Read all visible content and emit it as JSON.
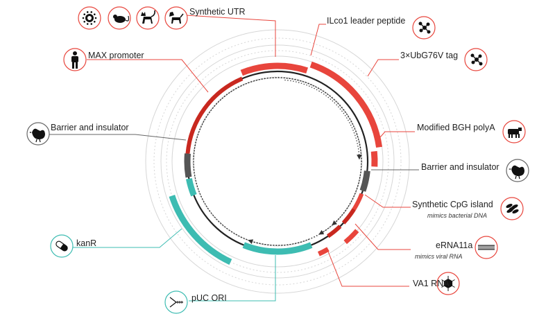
{
  "labels": {
    "synthetic_utr": "Synthetic UTR",
    "ilco1_leader": "ILco1 leader peptide",
    "ubg76v_tag": "3×UbG76V tag",
    "max_promoter": "MAX promoter",
    "modified_bgh_polya": "Modified BGH polyA",
    "barrier_left": "Barrier and insulator",
    "barrier_right": "Barrier and insulator",
    "synthetic_cpg": "Synthetic CpG island",
    "cpg_sub": "mimics bacterial DNA",
    "erna": "eRNA11a",
    "erna_sub": "mimics viral RNA",
    "kanr": "kanR",
    "va1": "VA1 RNA",
    "puc_ori": "pUC ORI"
  },
  "icons": {
    "top_group": [
      "virus-icon",
      "mouse-icon",
      "cat-icon",
      "dog-icon"
    ],
    "max_promoter": "human-icon",
    "barrier_left": "chicken-icon",
    "ilco1_leader": "molecule-icon",
    "ubg76v_tag": "molecule-icon",
    "modified_bgh_polya": "cow-icon",
    "barrier_right": "chicken-icon",
    "synthetic_cpg": "bacteria-icon",
    "erna": "rna-icon",
    "va1": "virus-capsid-icon",
    "kanr": "pill-icon",
    "puc_ori": "replication-fork-icon"
  },
  "colors": {
    "red": "#e8453c",
    "dark_red": "#c8281f",
    "grey": "#555555",
    "teal": "#3dbcb2",
    "line_red": "#e8453c",
    "line_grey": "#666666",
    "line_teal": "#3dbcb2",
    "ring": "#d6d6d6"
  }
}
